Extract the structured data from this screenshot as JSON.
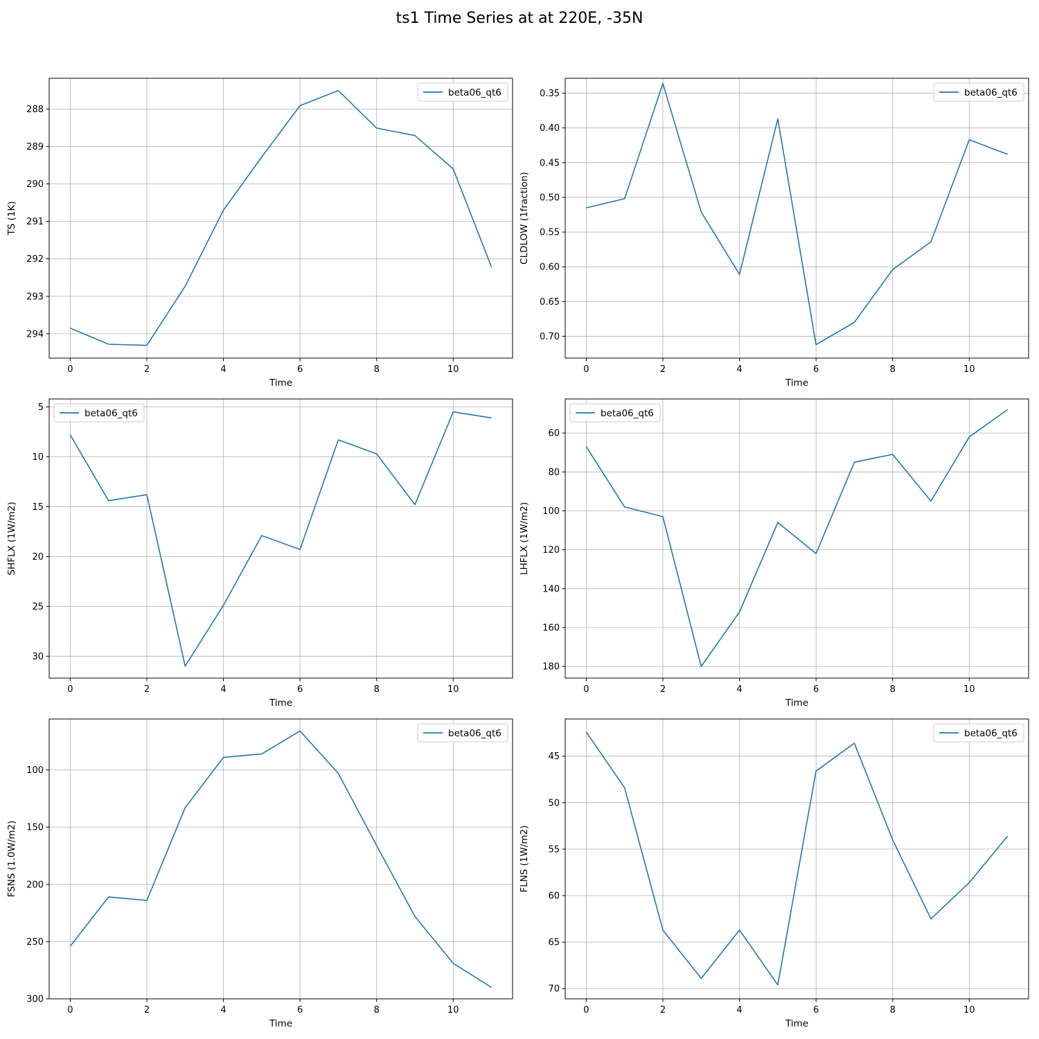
{
  "figure": {
    "title": "ts1 Time Series at at 220E, -35N"
  },
  "colors": {
    "line": "#1f77b4",
    "grid": "#b0b0b0",
    "axis": "#000000"
  },
  "chart_data": [
    {
      "type": "line",
      "title": "",
      "xlabel": "Time",
      "ylabel": "TS (1K)",
      "x": [
        0,
        1,
        2,
        3,
        4,
        5,
        6,
        7,
        8,
        9,
        10,
        11
      ],
      "xlim": [
        -0.55,
        11.55
      ],
      "ylim": [
        294.65,
        287.18
      ],
      "y_inverted": true,
      "xticks": [
        0,
        2,
        4,
        6,
        8,
        10
      ],
      "yticks": [
        288,
        289,
        290,
        291,
        292,
        293,
        294
      ],
      "grid": true,
      "legend": "top-right",
      "series": [
        {
          "name": "beta06_qt6",
          "values": [
            293.85,
            294.28,
            294.31,
            292.73,
            290.7,
            289.28,
            287.91,
            287.51,
            288.51,
            288.71,
            289.6,
            292.22
          ]
        }
      ]
    },
    {
      "type": "line",
      "title": "",
      "xlabel": "Time",
      "ylabel": "CLDLOW (1fraction)",
      "x": [
        0,
        1,
        2,
        3,
        4,
        5,
        6,
        7,
        8,
        9,
        10,
        11
      ],
      "xlim": [
        -0.55,
        11.55
      ],
      "ylim": [
        0.7315,
        0.3285
      ],
      "y_inverted": true,
      "xticks": [
        0,
        2,
        4,
        6,
        8,
        10
      ],
      "yticks": [
        0.35,
        0.4,
        0.45,
        0.5,
        0.55,
        0.6,
        0.65,
        0.7
      ],
      "ytick_labels": [
        "0.35",
        "0.40",
        "0.45",
        "0.50",
        "0.55",
        "0.60",
        "0.65",
        "0.70"
      ],
      "grid": true,
      "legend": "top-right",
      "series": [
        {
          "name": "beta06_qt6",
          "values": [
            0.515,
            0.502,
            0.336,
            0.521,
            0.611,
            0.387,
            0.712,
            0.68,
            0.604,
            0.564,
            0.417,
            0.438
          ]
        }
      ]
    },
    {
      "type": "line",
      "title": "",
      "xlabel": "Time",
      "ylabel": "SHFLX (1W/m2)",
      "x": [
        0,
        1,
        2,
        3,
        4,
        5,
        6,
        7,
        8,
        9,
        10,
        11
      ],
      "xlim": [
        -0.55,
        11.55
      ],
      "ylim": [
        32.2,
        4.2
      ],
      "y_inverted": true,
      "xticks": [
        0,
        2,
        4,
        6,
        8,
        10
      ],
      "yticks": [
        5,
        10,
        15,
        20,
        25,
        30
      ],
      "grid": true,
      "legend": "top-left",
      "series": [
        {
          "name": "beta06_qt6",
          "values": [
            7.8,
            14.4,
            13.8,
            31.0,
            24.9,
            17.9,
            19.3,
            8.3,
            9.7,
            14.8,
            5.5,
            6.1
          ]
        }
      ]
    },
    {
      "type": "line",
      "title": "",
      "xlabel": "Time",
      "ylabel": "LHFLX (1W/m2)",
      "x": [
        0,
        1,
        2,
        3,
        4,
        5,
        6,
        7,
        8,
        9,
        10,
        11
      ],
      "xlim": [
        -0.55,
        11.55
      ],
      "ylim": [
        186.0,
        42.5
      ],
      "y_inverted": true,
      "xticks": [
        0,
        2,
        4,
        6,
        8,
        10
      ],
      "yticks": [
        60,
        80,
        100,
        120,
        140,
        160,
        180
      ],
      "grid": true,
      "legend": "top-left",
      "series": [
        {
          "name": "beta06_qt6",
          "values": [
            67,
            98,
            103,
            180,
            152,
            106,
            122,
            75,
            71,
            95,
            62,
            48
          ]
        }
      ]
    },
    {
      "type": "line",
      "title": "",
      "xlabel": "Time",
      "ylabel": "FSNS (1.0W/m2)",
      "x": [
        0,
        1,
        2,
        3,
        4,
        5,
        6,
        7,
        8,
        9,
        10,
        11
      ],
      "xlim": [
        -0.55,
        11.55
      ],
      "ylim": [
        300.0,
        55.5
      ],
      "y_inverted": true,
      "xticks": [
        0,
        2,
        4,
        6,
        8,
        10
      ],
      "yticks": [
        100,
        150,
        200,
        250,
        300
      ],
      "grid": true,
      "legend": "top-right",
      "series": [
        {
          "name": "beta06_qt6",
          "values": [
            254,
            211,
            214,
            133,
            89,
            86,
            66,
            103,
            166,
            228,
            269,
            290
          ]
        }
      ]
    },
    {
      "type": "line",
      "title": "",
      "xlabel": "Time",
      "ylabel": "FLNS (1W/m2)",
      "x": [
        0,
        1,
        2,
        3,
        4,
        5,
        6,
        7,
        8,
        9,
        10,
        11
      ],
      "xlim": [
        -0.55,
        11.55
      ],
      "ylim": [
        71.1,
        41.0
      ],
      "y_inverted": true,
      "xticks": [
        0,
        2,
        4,
        6,
        8,
        10
      ],
      "yticks": [
        45,
        50,
        55,
        60,
        65,
        70
      ],
      "grid": true,
      "legend": "top-right",
      "series": [
        {
          "name": "beta06_qt6",
          "values": [
            42.4,
            48.4,
            63.7,
            68.9,
            63.7,
            69.6,
            46.6,
            43.6,
            54.0,
            62.5,
            58.6,
            53.6
          ]
        }
      ]
    }
  ]
}
